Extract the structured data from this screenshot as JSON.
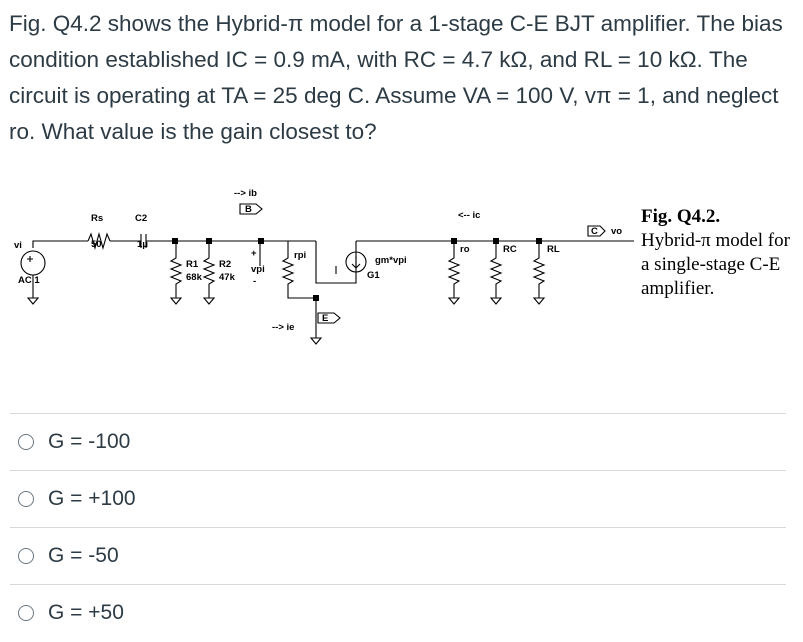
{
  "question": {
    "text": "Fig. Q4.2 shows the Hybrid-π model for a 1-stage C-E BJT amplifier. The bias condition established IC = 0.9 mA, with RC = 4.7 kΩ, and RL = 10 kΩ. The circuit is operating at TA = 25 deg C. Assume VA = 100 V, vπ = 1, and neglect ro. What value is the gain closest to?"
  },
  "figure": {
    "caption_title": "Fig. Q4.2.",
    "caption_body": "Hybrid-π model for a single-stage C-E amplifier.",
    "labels": {
      "vi": "vi",
      "ac": "AC 1",
      "rs": "Rs",
      "rs_val": "50",
      "c2": "C2",
      "c2_val": "1μ",
      "r1": "R1",
      "r1_val": "68k",
      "r2": "R2",
      "r2_val": "47k",
      "plus": "+",
      "vpi": "vpi",
      "minus": "-",
      "ib": "--> ib",
      "b": "B",
      "rpi": "rpi",
      "ie": "--> ie",
      "e": "E",
      "gm": "gm*vpi",
      "g1": "G1",
      "ic": "<-- ic",
      "ro": "ro",
      "rc": "RC",
      "rl": "RL",
      "c": "C",
      "vo": "vo"
    }
  },
  "options": [
    {
      "label": "G = -100"
    },
    {
      "label": "G = +100"
    },
    {
      "label": "G = -50"
    },
    {
      "label": "G = +50"
    }
  ]
}
